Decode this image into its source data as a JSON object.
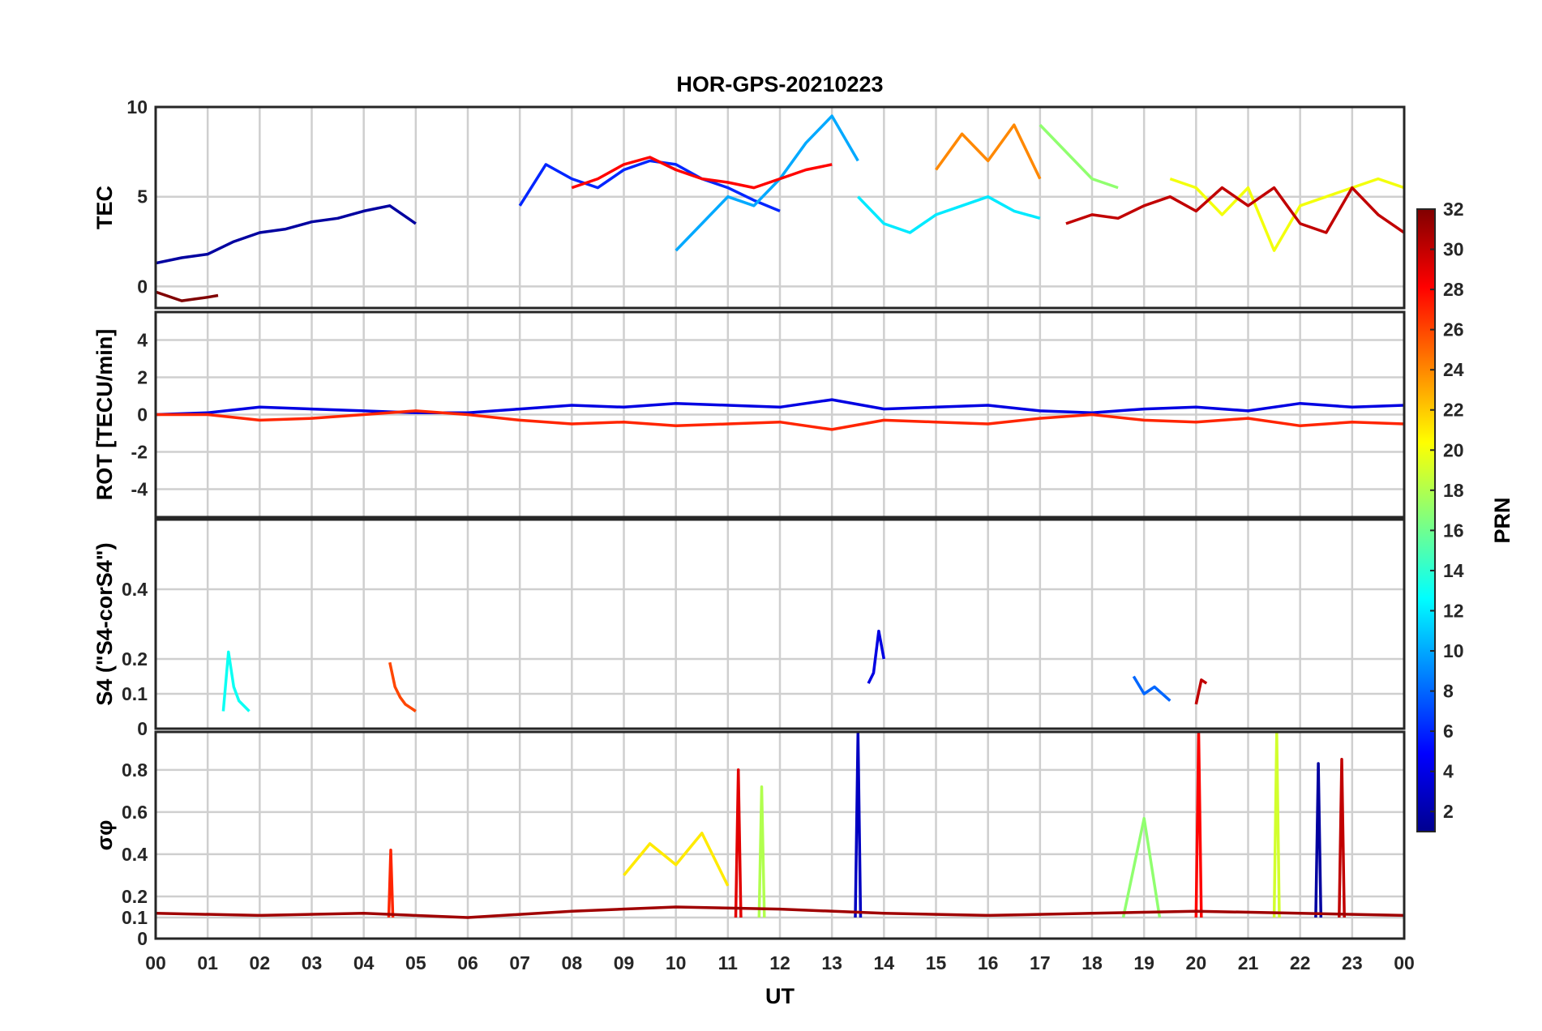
{
  "chart_data": {
    "type": "line",
    "title": "HOR-GPS-20210223",
    "xlabel": "UT",
    "x_tick_labels": [
      "00",
      "01",
      "02",
      "03",
      "04",
      "05",
      "06",
      "07",
      "08",
      "09",
      "10",
      "11",
      "12",
      "13",
      "14",
      "15",
      "16",
      "17",
      "18",
      "19",
      "20",
      "21",
      "22",
      "23",
      "00"
    ],
    "xlim": [
      0,
      24
    ],
    "colorbar": {
      "label": "PRN",
      "range": [
        1,
        32
      ],
      "tick_labels": [
        "2",
        "4",
        "6",
        "8",
        "10",
        "12",
        "14",
        "16",
        "18",
        "20",
        "22",
        "24",
        "26",
        "28",
        "30",
        "32"
      ],
      "colormap": "jet"
    },
    "panels": [
      {
        "name": "TEC",
        "ylabel": "TEC",
        "ylim": [
          -1.2,
          10
        ],
        "y_ticks": [
          0,
          5,
          10
        ],
        "y_tick_labels": [
          "0",
          "5",
          "10"
        ],
        "series": [
          {
            "prn": 2,
            "x": [
              0.0,
              0.5,
              1.0,
              1.5,
              2.0,
              2.5,
              3.0,
              3.5,
              4.0,
              4.5,
              5.0
            ],
            "y": [
              1.3,
              1.6,
              1.8,
              2.5,
              3.0,
              3.2,
              3.6,
              3.8,
              4.2,
              4.5,
              3.5
            ]
          },
          {
            "prn": 6,
            "x": [
              7.0,
              7.5,
              8.0,
              8.5,
              9.0,
              9.5,
              10.0,
              10.5,
              11.0,
              11.5,
              12.0
            ],
            "y": [
              4.5,
              6.8,
              6.0,
              5.5,
              6.5,
              7.0,
              6.8,
              6.0,
              5.5,
              4.8,
              4.2
            ]
          },
          {
            "prn": 10,
            "x": [
              10.0,
              10.5,
              11.0,
              11.5,
              12.0,
              12.5,
              13.0,
              13.5
            ],
            "y": [
              2.0,
              3.5,
              5.0,
              4.5,
              6.0,
              8.0,
              9.5,
              7.0
            ]
          },
          {
            "prn": 12,
            "x": [
              13.5,
              14.0,
              14.5,
              15.0,
              15.5,
              16.0,
              16.5,
              17.0
            ],
            "y": [
              5.0,
              3.5,
              3.0,
              4.0,
              4.5,
              5.0,
              4.2,
              3.8
            ]
          },
          {
            "prn": 17,
            "x": [
              17.0,
              17.5,
              18.0,
              18.5
            ],
            "y": [
              9.0,
              7.5,
              6.0,
              5.5
            ]
          },
          {
            "prn": 20,
            "x": [
              19.5,
              20.0,
              20.5,
              21.0,
              21.5,
              22.0,
              22.5,
              23.0,
              23.5,
              24.0
            ],
            "y": [
              6.0,
              5.5,
              4.0,
              5.5,
              2.0,
              4.5,
              5.0,
              5.5,
              6.0,
              5.5
            ]
          },
          {
            "prn": 24,
            "x": [
              15.0,
              15.5,
              16.0,
              16.5,
              17.0
            ],
            "y": [
              6.5,
              8.5,
              7.0,
              9.0,
              6.0
            ]
          },
          {
            "prn": 28,
            "x": [
              8.0,
              8.5,
              9.0,
              9.5,
              10.0,
              10.5,
              11.0,
              11.5,
              12.0,
              12.5,
              13.0
            ],
            "y": [
              5.5,
              6.0,
              6.8,
              7.2,
              6.5,
              6.0,
              5.8,
              5.5,
              6.0,
              6.5,
              6.8
            ]
          },
          {
            "prn": 30,
            "x": [
              17.5,
              18.0,
              18.5,
              19.0,
              19.5,
              20.0,
              20.5,
              21.0,
              21.5,
              22.0,
              22.5,
              23.0,
              23.5,
              24.0
            ],
            "y": [
              3.5,
              4.0,
              3.8,
              4.5,
              5.0,
              4.2,
              5.5,
              4.5,
              5.5,
              3.5,
              3.0,
              5.5,
              4.0,
              3.0
            ]
          },
          {
            "prn": 32,
            "x": [
              0.0,
              0.5,
              1.0,
              1.2
            ],
            "y": [
              -0.3,
              -0.8,
              -0.6,
              -0.5
            ]
          }
        ]
      },
      {
        "name": "ROT",
        "ylabel": "ROT [TECU/min]",
        "ylim": [
          -5.5,
          5.5
        ],
        "y_ticks": [
          -4,
          -2,
          0,
          2,
          4
        ],
        "y_tick_labels": [
          "-4",
          "-2",
          "0",
          "2",
          "4"
        ],
        "series": [
          {
            "prn": 4,
            "x": [
              0.0,
              1.0,
              2.0,
              3.0,
              4.0,
              5.0,
              6.0,
              7.0,
              8.0,
              9.0,
              10.0,
              11.0,
              12.0,
              13.0,
              14.0,
              15.0,
              16.0,
              17.0,
              18.0,
              19.0,
              20.0,
              21.0,
              22.0,
              23.0,
              24.0
            ],
            "y": [
              0.0,
              0.1,
              0.4,
              0.3,
              0.2,
              0.1,
              0.1,
              0.3,
              0.5,
              0.4,
              0.6,
              0.5,
              0.4,
              0.8,
              0.3,
              0.4,
              0.5,
              0.2,
              0.1,
              0.3,
              0.4,
              0.2,
              0.6,
              0.4,
              0.5
            ]
          },
          {
            "prn": 27,
            "x": [
              0.0,
              1.0,
              2.0,
              3.0,
              4.0,
              5.0,
              6.0,
              7.0,
              8.0,
              9.0,
              10.0,
              11.0,
              12.0,
              13.0,
              14.0,
              15.0,
              16.0,
              17.0,
              18.0,
              19.0,
              20.0,
              21.0,
              22.0,
              23.0,
              24.0
            ],
            "y": [
              0.0,
              0.0,
              -0.3,
              -0.2,
              0.0,
              0.2,
              0.0,
              -0.3,
              -0.5,
              -0.4,
              -0.6,
              -0.5,
              -0.4,
              -0.8,
              -0.3,
              -0.4,
              -0.5,
              -0.2,
              0.0,
              -0.3,
              -0.4,
              -0.2,
              -0.6,
              -0.4,
              -0.5
            ]
          }
        ]
      },
      {
        "name": "S4",
        "ylabel": "S4 (\"S4-corS4\")",
        "ylim": [
          0,
          0.6
        ],
        "y_ticks": [
          0,
          0.1,
          0.2,
          0.4
        ],
        "y_tick_labels": [
          "0",
          "0.1",
          "0.2",
          "0.4"
        ],
        "series": [
          {
            "prn": 13,
            "x": [
              1.3,
              1.4,
              1.5,
              1.6,
              1.8
            ],
            "y": [
              0.05,
              0.22,
              0.12,
              0.08,
              0.05
            ]
          },
          {
            "prn": 26,
            "x": [
              4.5,
              4.6,
              4.7,
              4.8,
              5.0
            ],
            "y": [
              0.19,
              0.12,
              0.09,
              0.07,
              0.05
            ]
          },
          {
            "prn": 4,
            "x": [
              13.7,
              13.8,
              13.9,
              14.0
            ],
            "y": [
              0.13,
              0.16,
              0.28,
              0.2
            ]
          },
          {
            "prn": 8,
            "x": [
              18.8,
              19.0,
              19.2,
              19.5
            ],
            "y": [
              0.15,
              0.1,
              0.12,
              0.08
            ]
          },
          {
            "prn": 30,
            "x": [
              20.0,
              20.1,
              20.2
            ],
            "y": [
              0.07,
              0.14,
              0.13
            ]
          }
        ]
      },
      {
        "name": "sigma_phi",
        "ylabel": "σφ",
        "ylim": [
          0,
          0.98
        ],
        "y_ticks": [
          0,
          0.1,
          0.2,
          0.4,
          0.6,
          0.8
        ],
        "y_tick_labels": [
          "0",
          "0.1",
          "0.2",
          "0.4",
          "0.6",
          "0.8"
        ],
        "series": [
          {
            "prn": 3,
            "x": [
              13.45,
              13.5,
              13.55
            ],
            "y": [
              0.1,
              0.98,
              0.1
            ]
          },
          {
            "prn": 28,
            "x": [
              20.0,
              20.05,
              20.1
            ],
            "y": [
              0.1,
              0.98,
              0.1
            ]
          },
          {
            "prn": 29,
            "x": [
              11.15,
              11.2,
              11.25
            ],
            "y": [
              0.1,
              0.8,
              0.1
            ]
          },
          {
            "prn": 19,
            "x": [
              21.5,
              21.55,
              21.6
            ],
            "y": [
              0.1,
              0.98,
              0.1
            ]
          },
          {
            "prn": 2,
            "x": [
              22.3,
              22.35,
              22.4
            ],
            "y": [
              0.1,
              0.83,
              0.1
            ]
          },
          {
            "prn": 30,
            "x": [
              22.75,
              22.8,
              22.85
            ],
            "y": [
              0.1,
              0.85,
              0.1
            ]
          },
          {
            "prn": 18,
            "x": [
              11.6,
              11.65,
              11.7
            ],
            "y": [
              0.1,
              0.72,
              0.1
            ]
          },
          {
            "prn": 17,
            "x": [
              18.6,
              19.0,
              19.3
            ],
            "y": [
              0.1,
              0.57,
              0.1
            ]
          },
          {
            "prn": 27,
            "x": [
              4.48,
              4.52,
              4.56
            ],
            "y": [
              0.1,
              0.42,
              0.1
            ]
          },
          {
            "prn": 21,
            "x": [
              9.0,
              9.5,
              10.0,
              10.5,
              11.0
            ],
            "y": [
              0.3,
              0.45,
              0.35,
              0.5,
              0.25
            ]
          },
          {
            "prn": 31,
            "x": [
              0.0,
              2.0,
              4.0,
              6.0,
              8.0,
              10.0,
              12.0,
              14.0,
              16.0,
              18.0,
              20.0,
              22.0,
              24.0
            ],
            "y": [
              0.12,
              0.11,
              0.12,
              0.1,
              0.13,
              0.15,
              0.14,
              0.12,
              0.11,
              0.12,
              0.13,
              0.12,
              0.11
            ]
          }
        ]
      }
    ]
  }
}
